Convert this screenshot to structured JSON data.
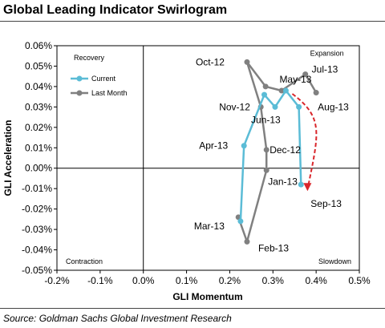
{
  "title": "Global Leading Indicator Swirlogram",
  "source": "Source: Goldman Sachs Global Investment Research",
  "chart_data": {
    "type": "line",
    "title": "Global Leading Indicator Swirlogram",
    "xlabel": "GLI Momentum",
    "ylabel": "GLI Acceleration",
    "xlim": [
      -0.002,
      0.005
    ],
    "ylim": [
      -0.0005,
      0.0006
    ],
    "x_ticks": [
      "-0.2%",
      "-0.1%",
      "0.0%",
      "0.1%",
      "0.2%",
      "0.3%",
      "0.4%",
      "0.5%"
    ],
    "y_ticks": [
      "0.06%",
      "0.05%",
      "0.04%",
      "0.03%",
      "0.02%",
      "0.01%",
      "0.00%",
      "-0.01%",
      "-0.02%",
      "-0.03%",
      "-0.04%",
      "-0.05%"
    ],
    "quadrant_labels": {
      "top_left": "Recovery",
      "top_right": "Expansion",
      "bottom_left": "Contraction",
      "bottom_right": "Slowdown"
    },
    "legend": {
      "position": "top-left",
      "entries": [
        {
          "name": "Current",
          "color": "#5bbcd6"
        },
        {
          "name": "Last Month",
          "color": "#808080"
        }
      ]
    },
    "grid": false,
    "series": [
      {
        "name": "Current",
        "color": "#5bbcd6",
        "points": [
          {
            "x": 0.00225,
            "y": -0.00026
          },
          {
            "x": 0.00233,
            "y": 0.00011
          },
          {
            "x": 0.0028,
            "y": 0.00036
          },
          {
            "x": 0.00305,
            "y": 0.0003
          },
          {
            "x": 0.0033,
            "y": 0.00038
          },
          {
            "x": 0.0036,
            "y": 0.0003
          },
          {
            "x": 0.00365,
            "y": -8e-05
          }
        ]
      },
      {
        "name": "Last Month",
        "color": "#808080",
        "points": [
          {
            "x": 0.0022,
            "y": -0.00024
          },
          {
            "x": 0.0024,
            "y": -0.00036
          },
          {
            "x": 0.00285,
            "y": -1e-05
          },
          {
            "x": 0.00285,
            "y": 9e-05
          },
          {
            "x": 0.00272,
            "y": 0.0003
          },
          {
            "x": 0.0024,
            "y": 0.00052
          },
          {
            "x": 0.00283,
            "y": 0.0004
          },
          {
            "x": 0.0032,
            "y": 0.00038
          },
          {
            "x": 0.00375,
            "y": 0.00046
          },
          {
            "x": 0.004,
            "y": 0.00037
          }
        ]
      }
    ],
    "point_labels": [
      {
        "text": "Oct-12",
        "x": 0.0024,
        "y": 0.00052
      },
      {
        "text": "May-13",
        "x": 0.0033,
        "y": 0.00038
      },
      {
        "text": "Jul-13",
        "x": 0.00375,
        "y": 0.00046
      },
      {
        "text": "Expansion",
        "x": 0.0036,
        "y": 0.00055
      },
      {
        "text": "Nov-12",
        "x": 0.00272,
        "y": 0.0003
      },
      {
        "text": "Aug-13",
        "x": 0.004,
        "y": 0.00037
      },
      {
        "text": "Jun-13",
        "x": 0.00305,
        "y": 0.0003
      },
      {
        "text": "Apr-13",
        "x": 0.00233,
        "y": 0.00011
      },
      {
        "text": "Dec-12",
        "x": 0.00285,
        "y": 9e-05
      },
      {
        "text": "Jan-13",
        "x": 0.00285,
        "y": -1e-05
      },
      {
        "text": "Sep-13",
        "x": 0.00365,
        "y": -8e-05
      },
      {
        "text": "Mar-13",
        "x": 0.00225,
        "y": -0.00026
      },
      {
        "text": "Feb-13",
        "x": 0.0024,
        "y": -0.00036
      }
    ]
  }
}
